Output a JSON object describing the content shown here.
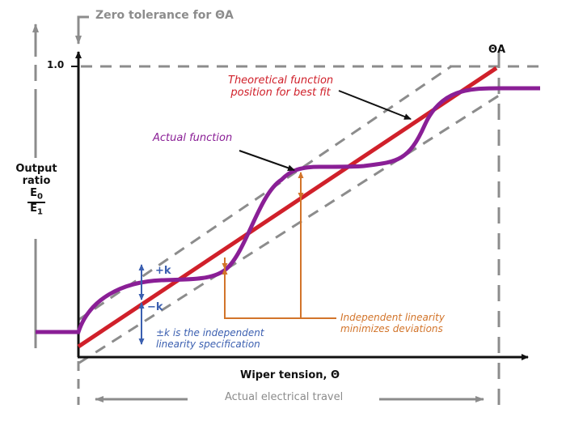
{
  "diagram": {
    "zero_tolerance_label": "Zero tolerance for ΘA",
    "y_tick_label": "1.0",
    "theta_a_label": "ΘA",
    "y_axis_label": {
      "line1": "Output",
      "line2": "ratio",
      "numerator": "E",
      "numerator_sub": "0",
      "denominator": "E",
      "denominator_sub": "1"
    },
    "x_axis_label": "Wiper tension, Θ",
    "travel_label": "Actual electrical travel",
    "theoretical_label": {
      "line1": "Theoretical function",
      "line2": "position for best fit"
    },
    "actual_label": "Actual function",
    "plus_k": "+k",
    "minus_k": "−k",
    "k_spec_label": {
      "line1": "±k is the independent",
      "line2": "linearity specification"
    },
    "independent_label": {
      "line1": "Independent linearity",
      "line2": "minimizes deviations"
    },
    "colors": {
      "axis": "#111111",
      "gray": "#8c8c8c",
      "theoretical": "#d0202a",
      "actual": "#8a1f96",
      "deviation": "#d2742a",
      "tolerance": "#3b5fb0"
    }
  }
}
